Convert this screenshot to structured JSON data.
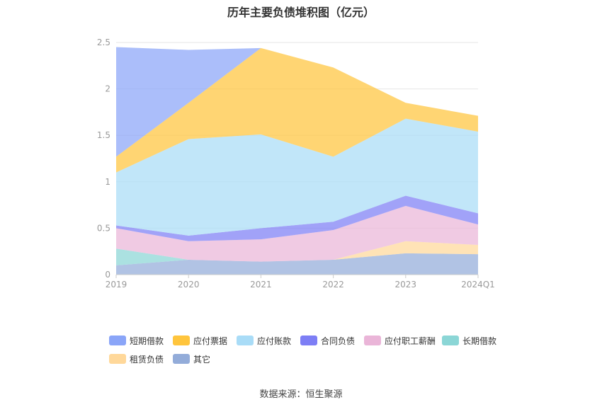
{
  "chart_data": {
    "type": "area",
    "stacked": true,
    "title": "历年主要负债堆积图（亿元）",
    "xlabel": "",
    "ylabel": "",
    "categories": [
      "2019",
      "2020",
      "2021",
      "2022",
      "2023",
      "2024Q1"
    ],
    "ylim": [
      0,
      2.5
    ],
    "yticks": [
      "0",
      "0.5",
      "1",
      "1.5",
      "2",
      "2.5"
    ],
    "grid": true,
    "legend_position": "bottom",
    "series": [
      {
        "name": "其它",
        "color": "#93acd9",
        "values": [
          0.1,
          0.16,
          0.14,
          0.16,
          0.23,
          0.22
        ]
      },
      {
        "name": "租赁负债",
        "color": "#ffd89a",
        "values": [
          0.0,
          0.0,
          0.0,
          0.0,
          0.13,
          0.1
        ]
      },
      {
        "name": "长期借款",
        "color": "#8bd6d6",
        "values": [
          0.18,
          0.0,
          0.0,
          0.0,
          0.0,
          0.0
        ]
      },
      {
        "name": "应付职工薪酬",
        "color": "#eab5d8",
        "values": [
          0.22,
          0.2,
          0.24,
          0.32,
          0.38,
          0.22
        ]
      },
      {
        "name": "合同负债",
        "color": "#7d7ef5",
        "values": [
          0.03,
          0.06,
          0.12,
          0.09,
          0.11,
          0.12
        ]
      },
      {
        "name": "应付账款",
        "color": "#a9dcf7",
        "values": [
          0.57,
          1.04,
          1.01,
          0.7,
          0.83,
          0.88
        ]
      },
      {
        "name": "应付票据",
        "color": "#ffc53d",
        "values": [
          0.17,
          0.39,
          0.93,
          0.96,
          0.17,
          0.17
        ]
      },
      {
        "name": "短期借款",
        "color": "#8aa5f8",
        "values": [
          1.18,
          0.57,
          0.0,
          0.0,
          0.0,
          0.0
        ]
      }
    ]
  },
  "legend": [
    {
      "label": "短期借款",
      "color": "#8aa5f8"
    },
    {
      "label": "应付票据",
      "color": "#ffc53d"
    },
    {
      "label": "应付账款",
      "color": "#a9dcf7"
    },
    {
      "label": "合同负债",
      "color": "#7d7ef5"
    },
    {
      "label": "应付职工薪酬",
      "color": "#eab5d8"
    },
    {
      "label": "长期借款",
      "color": "#8bd6d6"
    },
    {
      "label": "租赁负债",
      "color": "#ffd89a"
    },
    {
      "label": "其它",
      "color": "#93acd9"
    }
  ],
  "source": "数据来源：恒生聚源"
}
